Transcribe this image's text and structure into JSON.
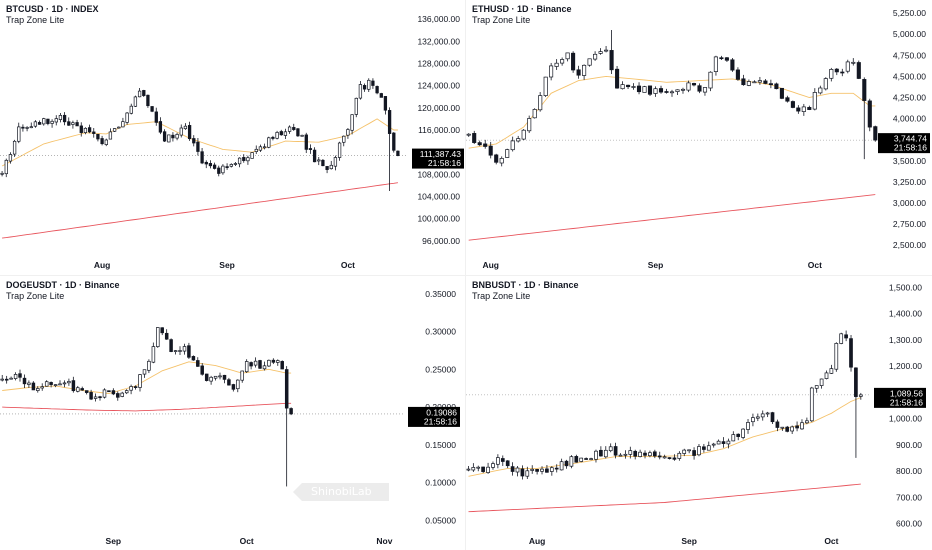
{
  "chart_data": [
    {
      "type": "candlestick",
      "title": "BTCUSD · 1D · INDEX",
      "subtitle": "Trap Zone Lite",
      "price_label": "111,387.43",
      "timer_label": "21:58:16",
      "ylim": [
        94000,
        138000
      ],
      "y_ticks": [
        96000,
        100000,
        104000,
        108000,
        112000,
        116000,
        120000,
        124000,
        128000,
        132000,
        136000
      ],
      "y_tick_labels": [
        "96,000.00",
        "100,000.00",
        "104,000.00",
        "108,000.00",
        "112,000.00",
        "116,000.00",
        "120,000.00",
        "124,000.00",
        "128,000.00",
        "132,000.00",
        "136,000.00"
      ],
      "x_tick_labels": [
        "Aug",
        "Sep",
        "Oct"
      ],
      "x_tick_index": [
        24,
        54,
        83
      ],
      "n_slots": 96,
      "last_price": 111387,
      "log_scale": false,
      "anchors": [
        [
          0,
          108000
        ],
        [
          4,
          116000
        ],
        [
          9,
          117500
        ],
        [
          14,
          118500
        ],
        [
          19,
          116000
        ],
        [
          24,
          114000
        ],
        [
          29,
          118000
        ],
        [
          33,
          122800
        ],
        [
          35,
          121000
        ],
        [
          39,
          114500
        ],
        [
          44,
          116500
        ],
        [
          47,
          111500
        ],
        [
          50,
          109000
        ],
        [
          54,
          108800
        ],
        [
          58,
          110800
        ],
        [
          63,
          113500
        ],
        [
          68,
          116000
        ],
        [
          71,
          115500
        ],
        [
          75,
          111000
        ],
        [
          78,
          109000
        ],
        [
          82,
          114500
        ],
        [
          86,
          123500
        ],
        [
          88,
          124600
        ],
        [
          90,
          122500
        ],
        [
          92,
          120000
        ],
        [
          93,
          115500
        ],
        [
          94,
          112000
        ],
        [
          95,
          111387
        ]
      ],
      "wick_anomalies": [
        [
          93,
          105000,
          "low"
        ]
      ],
      "ema_anchors": [
        [
          0,
          109500
        ],
        [
          10,
          113500
        ],
        [
          20,
          115500
        ],
        [
          25,
          115300
        ],
        [
          30,
          117000
        ],
        [
          37,
          117500
        ],
        [
          45,
          114500
        ],
        [
          53,
          112500
        ],
        [
          60,
          112000
        ],
        [
          68,
          114000
        ],
        [
          76,
          113800
        ],
        [
          83,
          115000
        ],
        [
          90,
          118000
        ],
        [
          94,
          116000
        ]
      ],
      "ema_color": "#f5c26b",
      "ma_long": [
        [
          0,
          96500
        ],
        [
          95,
          106500
        ]
      ],
      "ma_long_color": "#e8565e"
    },
    {
      "type": "candlestick",
      "title": "ETHUSD · 1D · Binance",
      "subtitle": "Trap Zone Lite",
      "price_label": "3,744.74",
      "timer_label": "21:58:16",
      "ylim": [
        2420,
        5310
      ],
      "y_ticks": [
        2500,
        2750,
        3000,
        3250,
        3500,
        3750,
        4000,
        4250,
        4500,
        4750,
        5000,
        5250
      ],
      "y_tick_labels": [
        "2,500.00",
        "2,750.00",
        "3,000.00",
        "3,250.00",
        "3,500.00",
        "3,750.00",
        "4,000.00",
        "4,250.00",
        "4,500.00",
        "4,750.00",
        "5,000.00",
        "5,250.00"
      ],
      "x_tick_labels": [
        "Aug",
        "Sep",
        "Oct"
      ],
      "x_tick_index": [
        4,
        34,
        63
      ],
      "n_slots": 75,
      "last_price": 3745,
      "log_scale": false,
      "anchors": [
        [
          0,
          3800
        ],
        [
          3,
          3650
        ],
        [
          5,
          3450
        ],
        [
          8,
          3700
        ],
        [
          11,
          4000
        ],
        [
          14,
          4450
        ],
        [
          16,
          4700
        ],
        [
          18,
          4750
        ],
        [
          20,
          4500
        ],
        [
          23,
          4800
        ],
        [
          25,
          4850
        ],
        [
          27,
          4350
        ],
        [
          30,
          4400
        ],
        [
          33,
          4300
        ],
        [
          36,
          4350
        ],
        [
          40,
          4380
        ],
        [
          43,
          4350
        ],
        [
          45,
          4700
        ],
        [
          47,
          4650
        ],
        [
          49,
          4500
        ],
        [
          51,
          4400
        ],
        [
          54,
          4450
        ],
        [
          57,
          4250
        ],
        [
          60,
          4050
        ],
        [
          62,
          4150
        ],
        [
          64,
          4400
        ],
        [
          66,
          4550
        ],
        [
          68,
          4600
        ],
        [
          70,
          4700
        ],
        [
          71,
          4500
        ],
        [
          72,
          4250
        ],
        [
          73,
          3900
        ],
        [
          74,
          3745
        ]
      ],
      "wick_anomalies": [
        [
          72,
          3520,
          "low"
        ],
        [
          26,
          5050,
          "high"
        ]
      ],
      "ema_anchors": [
        [
          0,
          3650
        ],
        [
          5,
          3700
        ],
        [
          10,
          3900
        ],
        [
          15,
          4300
        ],
        [
          20,
          4450
        ],
        [
          25,
          4500
        ],
        [
          30,
          4470
        ],
        [
          36,
          4430
        ],
        [
          42,
          4450
        ],
        [
          48,
          4470
        ],
        [
          55,
          4400
        ],
        [
          62,
          4250
        ],
        [
          66,
          4300
        ],
        [
          70,
          4300
        ],
        [
          73,
          4150
        ]
      ],
      "ema_color": "#f5c26b",
      "ma_long": [
        [
          0,
          2560
        ],
        [
          74,
          3100
        ]
      ],
      "ma_long_color": "#e8565e"
    },
    {
      "type": "candlestick",
      "title": "DOGEUSDT · 1D · Binance",
      "subtitle": "Trap Zone Lite",
      "price_label": "0.19086",
      "timer_label": "21:58:16",
      "ylim": [
        0.04,
        0.355
      ],
      "y_ticks": [
        0.05,
        0.1,
        0.15,
        0.2,
        0.25,
        0.3,
        0.35
      ],
      "y_tick_labels": [
        "0.05000",
        "0.10000",
        "0.15000",
        "0.20000",
        "0.25000",
        "0.30000",
        "0.35000"
      ],
      "x_tick_labels": [
        "Sep",
        "Oct",
        "Nov"
      ],
      "x_tick_index": [
        25,
        55,
        86
      ],
      "n_slots": 90,
      "last_price": 0.191,
      "log_scale": false,
      "anchors": [
        [
          0,
          0.235
        ],
        [
          4,
          0.24
        ],
        [
          7,
          0.228
        ],
        [
          11,
          0.235
        ],
        [
          14,
          0.235
        ],
        [
          18,
          0.218
        ],
        [
          21,
          0.21
        ],
        [
          24,
          0.225
        ],
        [
          27,
          0.215
        ],
        [
          30,
          0.23
        ],
        [
          33,
          0.265
        ],
        [
          35,
          0.305
        ],
        [
          38,
          0.275
        ],
        [
          41,
          0.28
        ],
        [
          44,
          0.25
        ],
        [
          47,
          0.235
        ],
        [
          50,
          0.24
        ],
        [
          52,
          0.225
        ],
        [
          55,
          0.26
        ],
        [
          58,
          0.255
        ],
        [
          60,
          0.265
        ],
        [
          62,
          0.26
        ],
        [
          63,
          0.25
        ],
        [
          64,
          0.2
        ],
        [
          65,
          0.19
        ]
      ],
      "wick_anomalies": [
        [
          64,
          0.095,
          "low"
        ]
      ],
      "ema_anchors": [
        [
          0,
          0.222
        ],
        [
          6,
          0.226
        ],
        [
          12,
          0.228
        ],
        [
          18,
          0.222
        ],
        [
          24,
          0.218
        ],
        [
          30,
          0.228
        ],
        [
          36,
          0.248
        ],
        [
          42,
          0.26
        ],
        [
          48,
          0.255
        ],
        [
          54,
          0.245
        ],
        [
          60,
          0.25
        ],
        [
          64,
          0.245
        ]
      ],
      "ema_color": "#f5c26b",
      "ma_long": [
        [
          0,
          0.2
        ],
        [
          20,
          0.196
        ],
        [
          30,
          0.195
        ],
        [
          40,
          0.197
        ],
        [
          55,
          0.202
        ],
        [
          64,
          0.205
        ]
      ],
      "ma_long_color": "#e8565e"
    },
    {
      "type": "candlestick",
      "title": "BNBUSDT · 1D · Binance",
      "subtitle": "Trap Zone Lite",
      "price_label": "1,089.56",
      "timer_label": "21:58:16",
      "ylim": [
        560,
        1520
      ],
      "y_ticks": [
        600,
        700,
        800,
        900,
        1000,
        1100,
        1200,
        1300,
        1400,
        1500
      ],
      "y_tick_labels": [
        "600.00",
        "700.00",
        "800.00",
        "900.00",
        "1,000.00",
        "1,100.00",
        "1,200.00",
        "1,300.00",
        "1,400.00",
        "1,500.00"
      ],
      "x_tick_labels": [
        "Aug",
        "Sep",
        "Oct"
      ],
      "x_tick_index": [
        14,
        45,
        74
      ],
      "n_slots": 84,
      "last_price": 1090,
      "log_scale": false,
      "anchors": [
        [
          0,
          800
        ],
        [
          3,
          810
        ],
        [
          6,
          850
        ],
        [
          8,
          830
        ],
        [
          11,
          780
        ],
        [
          13,
          790
        ],
        [
          16,
          810
        ],
        [
          19,
          830
        ],
        [
          22,
          850
        ],
        [
          25,
          860
        ],
        [
          28,
          880
        ],
        [
          31,
          870
        ],
        [
          34,
          865
        ],
        [
          37,
          860
        ],
        [
          40,
          855
        ],
        [
          43,
          860
        ],
        [
          46,
          870
        ],
        [
          49,
          900
        ],
        [
          52,
          920
        ],
        [
          55,
          935
        ],
        [
          57,
          990
        ],
        [
          59,
          1010
        ],
        [
          61,
          1020
        ],
        [
          63,
          975
        ],
        [
          65,
          950
        ],
        [
          67,
          970
        ],
        [
          69,
          1000
        ],
        [
          70,
          1100
        ],
        [
          72,
          1150
        ],
        [
          74,
          1200
        ],
        [
          75,
          1270
        ],
        [
          76,
          1320
        ],
        [
          77,
          1300
        ],
        [
          78,
          1180
        ],
        [
          79,
          1100
        ],
        [
          80,
          1090
        ]
      ],
      "wick_anomalies": [
        [
          79,
          850,
          "low"
        ]
      ],
      "ema_anchors": [
        [
          0,
          780
        ],
        [
          8,
          810
        ],
        [
          14,
          810
        ],
        [
          22,
          830
        ],
        [
          30,
          855
        ],
        [
          38,
          855
        ],
        [
          46,
          860
        ],
        [
          52,
          885
        ],
        [
          58,
          930
        ],
        [
          64,
          960
        ],
        [
          70,
          985
        ],
        [
          74,
          1020
        ],
        [
          78,
          1065
        ],
        [
          80,
          1080
        ]
      ],
      "ema_color": "#f5c26b",
      "ma_long": [
        [
          0,
          645
        ],
        [
          40,
          680
        ],
        [
          80,
          750
        ]
      ],
      "ma_long_color": "#e8565e"
    }
  ],
  "watermark": {
    "label": "ShinobiLab"
  },
  "colors": {
    "candle": "#131722",
    "grid": "#f0f3fa",
    "axis_text": "#131722",
    "price_tag_bg": "#000000",
    "price_tag_text": "#ffffff"
  }
}
